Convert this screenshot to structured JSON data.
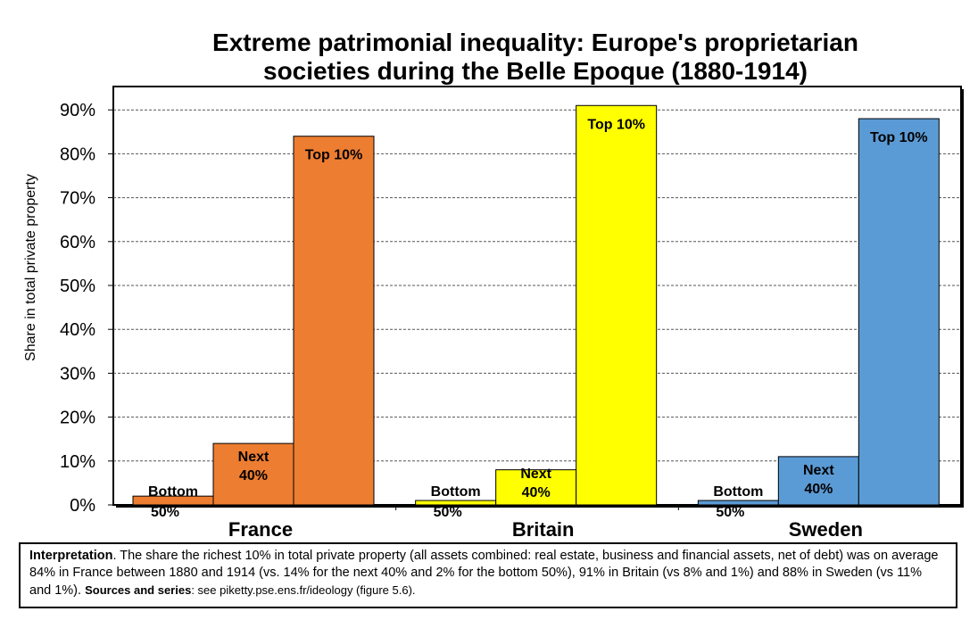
{
  "chart_data": {
    "type": "bar",
    "title_line1": "Extreme patrimonial inequality: Europe's proprietarian",
    "title_line2": "societies during the Belle Epoque (1880-1914)",
    "ylabel": "Share in total private property",
    "ylim": [
      0,
      100
    ],
    "yticks": [
      "0%",
      "10%",
      "20%",
      "30%",
      "40%",
      "50%",
      "60%",
      "70%",
      "80%",
      "90%"
    ],
    "grid": true,
    "groups": [
      {
        "name": "France",
        "color": "#ed7d31",
        "bars": [
          {
            "label1": "Bottom",
            "label2": "50%",
            "value": 2
          },
          {
            "label1": "Next",
            "label2": "40%",
            "value": 14
          },
          {
            "label1": "Top 10%",
            "label2": "",
            "value": 84
          }
        ]
      },
      {
        "name": "Britain",
        "color": "#ffff00",
        "bars": [
          {
            "label1": "Bottom",
            "label2": "50%",
            "value": 1
          },
          {
            "label1": "Next",
            "label2": "40%",
            "value": 8
          },
          {
            "label1": "Top 10%",
            "label2": "",
            "value": 91
          }
        ]
      },
      {
        "name": "Sweden",
        "color": "#5b9bd5",
        "bars": [
          {
            "label1": "Bottom",
            "label2": "50%",
            "value": 1
          },
          {
            "label1": "Next",
            "label2": "40%",
            "value": 11
          },
          {
            "label1": "Top 10%",
            "label2": "",
            "value": 88
          }
        ]
      }
    ]
  },
  "interpretation": {
    "label": "Interpretation",
    "text": ". The share the richest 10% in total private property (all assets combined: real estate, business and financial assets, net of debt) was on average 84% in France between 1880 and 1914 (vs. 14% for the next 40% and 2% for the bottom 50%), 91% in Britain (vs 8% and 1%) and 88% in Sweden (vs 11% and 1%). ",
    "sources_label": "Sources and series",
    "sources_text": ": see piketty.pse.ens.fr/ideology (figure 5.6)."
  }
}
